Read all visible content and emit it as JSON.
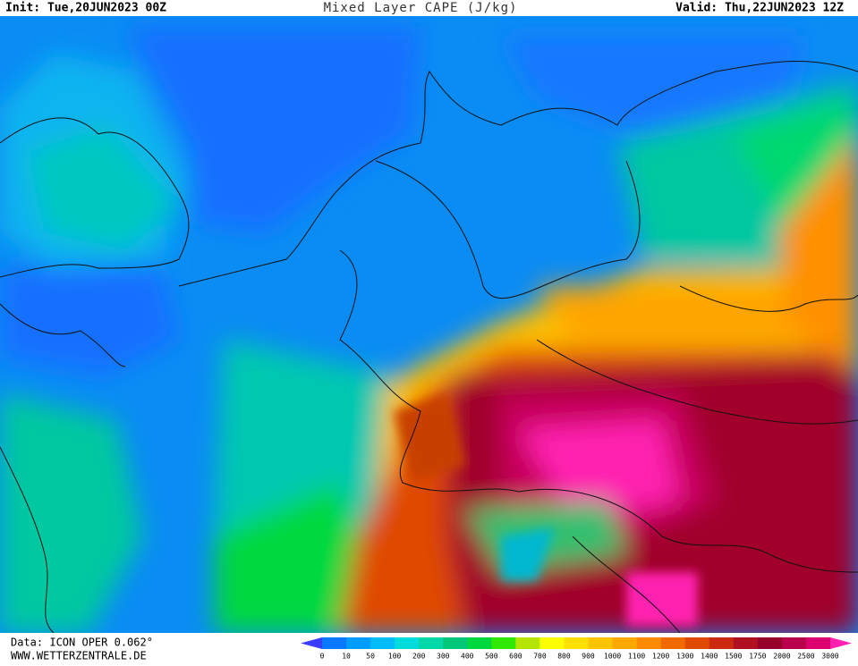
{
  "header": {
    "init": "Init: Tue,20JUN2023 00Z",
    "title": "Mixed Layer CAPE (J/kg)",
    "valid": "Valid: Thu,22JUN2023 12Z"
  },
  "footer": {
    "data_source": "Data: ICON OPER 0.062°",
    "website": "WWW.WETTERZENTRALE.DE"
  },
  "colorbar": {
    "labels": [
      "0",
      "10",
      "50",
      "100",
      "200",
      "300",
      "400",
      "500",
      "600",
      "700",
      "800",
      "900",
      "1000",
      "1100",
      "1200",
      "1300",
      "1400",
      "1500",
      "1750",
      "2000",
      "2500",
      "3000"
    ],
    "colors": [
      "#3a3cff",
      "#0a78ff",
      "#009cff",
      "#00bcff",
      "#00dcdc",
      "#00d8a8",
      "#00c878",
      "#00d840",
      "#30e800",
      "#b4e400",
      "#ffff00",
      "#ffe000",
      "#ffc400",
      "#ffa800",
      "#ff8c00",
      "#f06a00",
      "#e04a00",
      "#cc2a10",
      "#b01020",
      "#98002c",
      "#b8004c",
      "#dc0070",
      "#ff20b0"
    ]
  }
}
